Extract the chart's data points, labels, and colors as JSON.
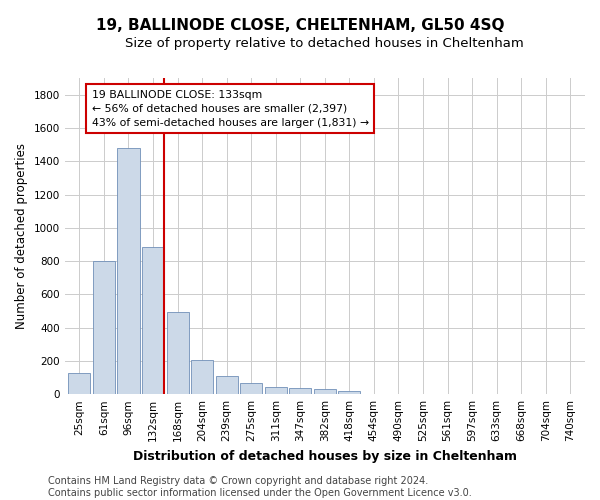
{
  "title": "19, BALLINODE CLOSE, CHELTENHAM, GL50 4SQ",
  "subtitle": "Size of property relative to detached houses in Cheltenham",
  "xlabel": "Distribution of detached houses by size in Cheltenham",
  "ylabel": "Number of detached properties",
  "categories": [
    "25sqm",
    "61sqm",
    "96sqm",
    "132sqm",
    "168sqm",
    "204sqm",
    "239sqm",
    "275sqm",
    "311sqm",
    "347sqm",
    "382sqm",
    "418sqm",
    "454sqm",
    "490sqm",
    "525sqm",
    "561sqm",
    "597sqm",
    "633sqm",
    "668sqm",
    "704sqm",
    "740sqm"
  ],
  "values": [
    130,
    800,
    1480,
    885,
    495,
    205,
    107,
    65,
    45,
    35,
    30,
    22,
    0,
    0,
    0,
    0,
    0,
    0,
    0,
    0,
    0
  ],
  "bar_color": "#ccd9e8",
  "bar_edge_color": "#7090b8",
  "vline_color": "#cc0000",
  "vline_x": 3.0,
  "annotation_text": "19 BALLINODE CLOSE: 133sqm\n← 56% of detached houses are smaller (2,397)\n43% of semi-detached houses are larger (1,831) →",
  "annotation_box_color": "#ffffff",
  "annotation_box_edge": "#cc0000",
  "ylim": [
    0,
    1900
  ],
  "yticks": [
    0,
    200,
    400,
    600,
    800,
    1000,
    1200,
    1400,
    1600,
    1800
  ],
  "background_color": "#ffffff",
  "plot_bg_color": "#ffffff",
  "grid_color": "#cccccc",
  "footer": "Contains HM Land Registry data © Crown copyright and database right 2024.\nContains public sector information licensed under the Open Government Licence v3.0.",
  "title_fontsize": 11,
  "subtitle_fontsize": 9.5,
  "xlabel_fontsize": 9,
  "ylabel_fontsize": 8.5,
  "tick_fontsize": 7.5,
  "footer_fontsize": 7
}
